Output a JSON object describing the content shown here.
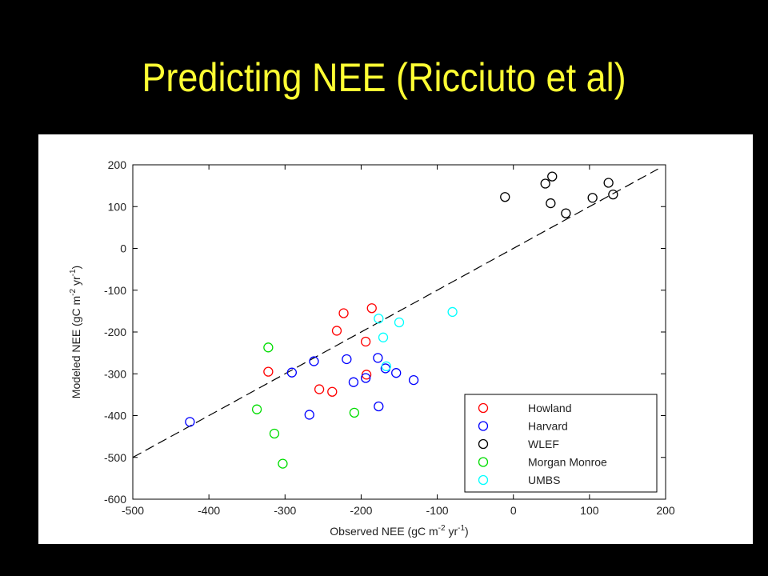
{
  "slide": {
    "title": "Predicting NEE (Ricciuto et al)"
  },
  "chart_data": {
    "type": "scatter",
    "title": "",
    "xlabel": "Observed NEE (gC m",
    "xlabel_exp": "-2",
    "xlabel_mid": " yr",
    "xlabel_exp2": "-1",
    "xlabel_end": ")",
    "ylabel": "Modeled NEE (gC m",
    "ylabel_exp": "-2",
    "ylabel_mid": " yr",
    "ylabel_exp2": "-1",
    "ylabel_end": ")",
    "xlim": [
      -500,
      200
    ],
    "ylim": [
      -600,
      200
    ],
    "xticks": [
      -500,
      -400,
      -300,
      -200,
      -100,
      0,
      100,
      200
    ],
    "yticks": [
      -600,
      -500,
      -400,
      -300,
      -200,
      -100,
      0,
      100,
      200
    ],
    "grid": false,
    "legend_position": "bottom-right",
    "fit_line": {
      "style": "dashed",
      "color": "#000000",
      "points": [
        [
          -500,
          -500
        ],
        [
          190,
          190
        ]
      ]
    },
    "series": [
      {
        "name": "Howland",
        "color": "#ff0000",
        "points": [
          [
            -322,
            -295
          ],
          [
            -232,
            -197
          ],
          [
            -223,
            -155
          ],
          [
            -186,
            -143
          ],
          [
            -194,
            -223
          ],
          [
            -193,
            -302
          ],
          [
            -255,
            -337
          ],
          [
            -238,
            -343
          ]
        ]
      },
      {
        "name": "Harvard",
        "color": "#0000ff",
        "points": [
          [
            -425,
            -415
          ],
          [
            -291,
            -297
          ],
          [
            -262,
            -270
          ],
          [
            -219,
            -265
          ],
          [
            -210,
            -320
          ],
          [
            -194,
            -310
          ],
          [
            -178,
            -262
          ],
          [
            -177,
            -378
          ],
          [
            -154,
            -298
          ],
          [
            -131,
            -315
          ],
          [
            -268,
            -398
          ],
          [
            -168,
            -287
          ]
        ]
      },
      {
        "name": "WLEF",
        "color": "#000000",
        "points": [
          [
            -11,
            123
          ],
          [
            42,
            155
          ],
          [
            51,
            172
          ],
          [
            49,
            108
          ],
          [
            69,
            84
          ],
          [
            104,
            121
          ],
          [
            125,
            157
          ],
          [
            131,
            129
          ]
        ]
      },
      {
        "name": "Morgan Monroe",
        "color": "#00dd00",
        "points": [
          [
            -322,
            -237
          ],
          [
            -337,
            -385
          ],
          [
            -314,
            -443
          ],
          [
            -303,
            -515
          ],
          [
            -209,
            -393
          ]
        ]
      },
      {
        "name": "UMBS",
        "color": "#00ffff",
        "points": [
          [
            -177,
            -168
          ],
          [
            -171,
            -213
          ],
          [
            -167,
            -282
          ],
          [
            -150,
            -177
          ],
          [
            -80,
            -152
          ]
        ]
      }
    ]
  }
}
